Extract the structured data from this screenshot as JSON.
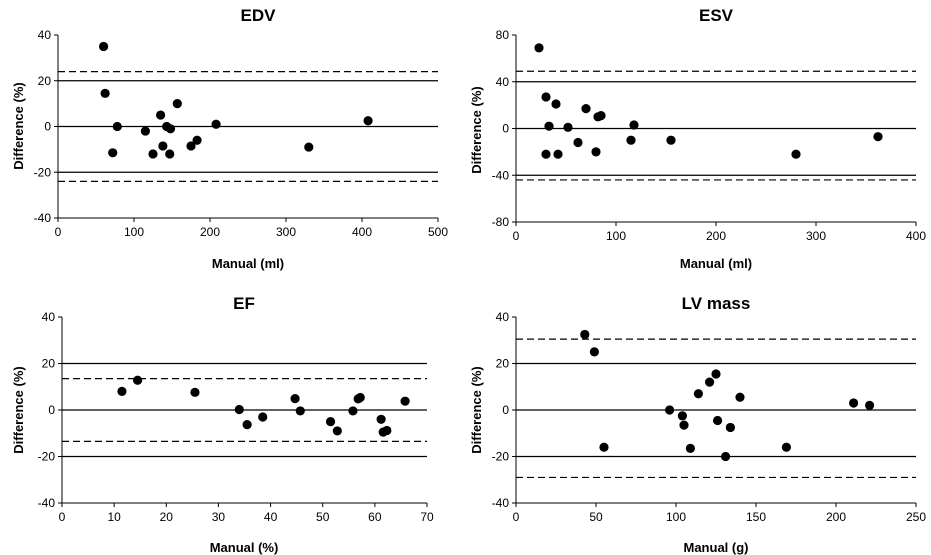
{
  "chart_data": [
    {
      "type": "scatter",
      "title": "EDV",
      "xlabel": "Manual (ml)",
      "ylabel": "Difference (%)",
      "xlim": [
        0,
        500
      ],
      "ylim": [
        -40,
        40
      ],
      "xticks": [
        "0",
        "100",
        "200",
        "300",
        "400",
        "500"
      ],
      "yticks": [
        "-40",
        "-20",
        "0",
        "20",
        "40"
      ],
      "solid_lines": [
        20,
        0,
        -20
      ],
      "dashed_lines": [
        24,
        -24
      ],
      "x": [
        60,
        62,
        72,
        78,
        115,
        125,
        135,
        138,
        143,
        147,
        148,
        157,
        175,
        183,
        208,
        330,
        408
      ],
      "y": [
        35,
        14.5,
        -11.5,
        0,
        -2,
        -12,
        5,
        -8.5,
        0,
        -12,
        -1,
        10,
        -8.5,
        -6,
        1,
        -9,
        2.5
      ]
    },
    {
      "type": "scatter",
      "title": "ESV",
      "xlabel": "Manual (ml)",
      "ylabel": "Difference (%)",
      "xlim": [
        0,
        400
      ],
      "ylim": [
        -80,
        80
      ],
      "xticks": [
        "0",
        "100",
        "200",
        "300",
        "400"
      ],
      "yticks": [
        "-80",
        "-40",
        "0",
        "40",
        "80"
      ],
      "solid_lines": [
        40,
        0,
        -40
      ],
      "dashed_lines": [
        49,
        -44
      ],
      "x": [
        23,
        30,
        30,
        33,
        40,
        42,
        52,
        62,
        70,
        80,
        82,
        85,
        115,
        118,
        155,
        280,
        362
      ],
      "y": [
        69,
        27,
        -22,
        2,
        21,
        -22,
        1,
        -12,
        17,
        -20,
        10,
        11,
        -10,
        3,
        -10,
        -22,
        -7
      ]
    },
    {
      "type": "scatter",
      "title": "EF",
      "xlabel": "Manual (%)",
      "ylabel": "Difference (%)",
      "xlim": [
        0,
        70
      ],
      "ylim": [
        -40,
        40
      ],
      "xticks": [
        "0",
        "10",
        "20",
        "30",
        "40",
        "50",
        "60",
        "70"
      ],
      "yticks": [
        "-40",
        "-20",
        "0",
        "20",
        "40"
      ],
      "solid_lines": [
        20,
        0,
        -20
      ],
      "dashed_lines": [
        13.5,
        -13.5
      ],
      "x": [
        11.5,
        14.5,
        25.5,
        34,
        35.5,
        38.5,
        44.7,
        45.7,
        51.5,
        52.8,
        55.8,
        56.8,
        57.2,
        61.2,
        61.6,
        62.3,
        65.8
      ],
      "y": [
        8,
        12.8,
        7.6,
        0.2,
        -6.3,
        -3,
        4.9,
        -0.4,
        -5,
        -9,
        -0.4,
        4.8,
        5.4,
        -4,
        -9.5,
        -8.8,
        3.8
      ]
    },
    {
      "type": "scatter",
      "title": "LV mass",
      "xlabel": "Manual (g)",
      "ylabel": "Difference (%)",
      "xlim": [
        0,
        250
      ],
      "ylim": [
        -40,
        40
      ],
      "xticks": [
        "0",
        "50",
        "100",
        "150",
        "200",
        "250"
      ],
      "yticks": [
        "-40",
        "-20",
        "0",
        "20",
        "40"
      ],
      "solid_lines": [
        20,
        0,
        -20
      ],
      "dashed_lines": [
        30.5,
        -29
      ],
      "x": [
        43,
        49,
        55,
        96,
        104,
        105,
        109,
        114,
        121,
        125,
        126,
        131,
        134,
        140,
        169,
        211,
        221
      ],
      "y": [
        32.5,
        25,
        -16,
        0,
        -2.5,
        -6.5,
        -16.5,
        7,
        12,
        15.5,
        -4.5,
        -20,
        -7.5,
        5.5,
        -16,
        3,
        2
      ]
    }
  ]
}
